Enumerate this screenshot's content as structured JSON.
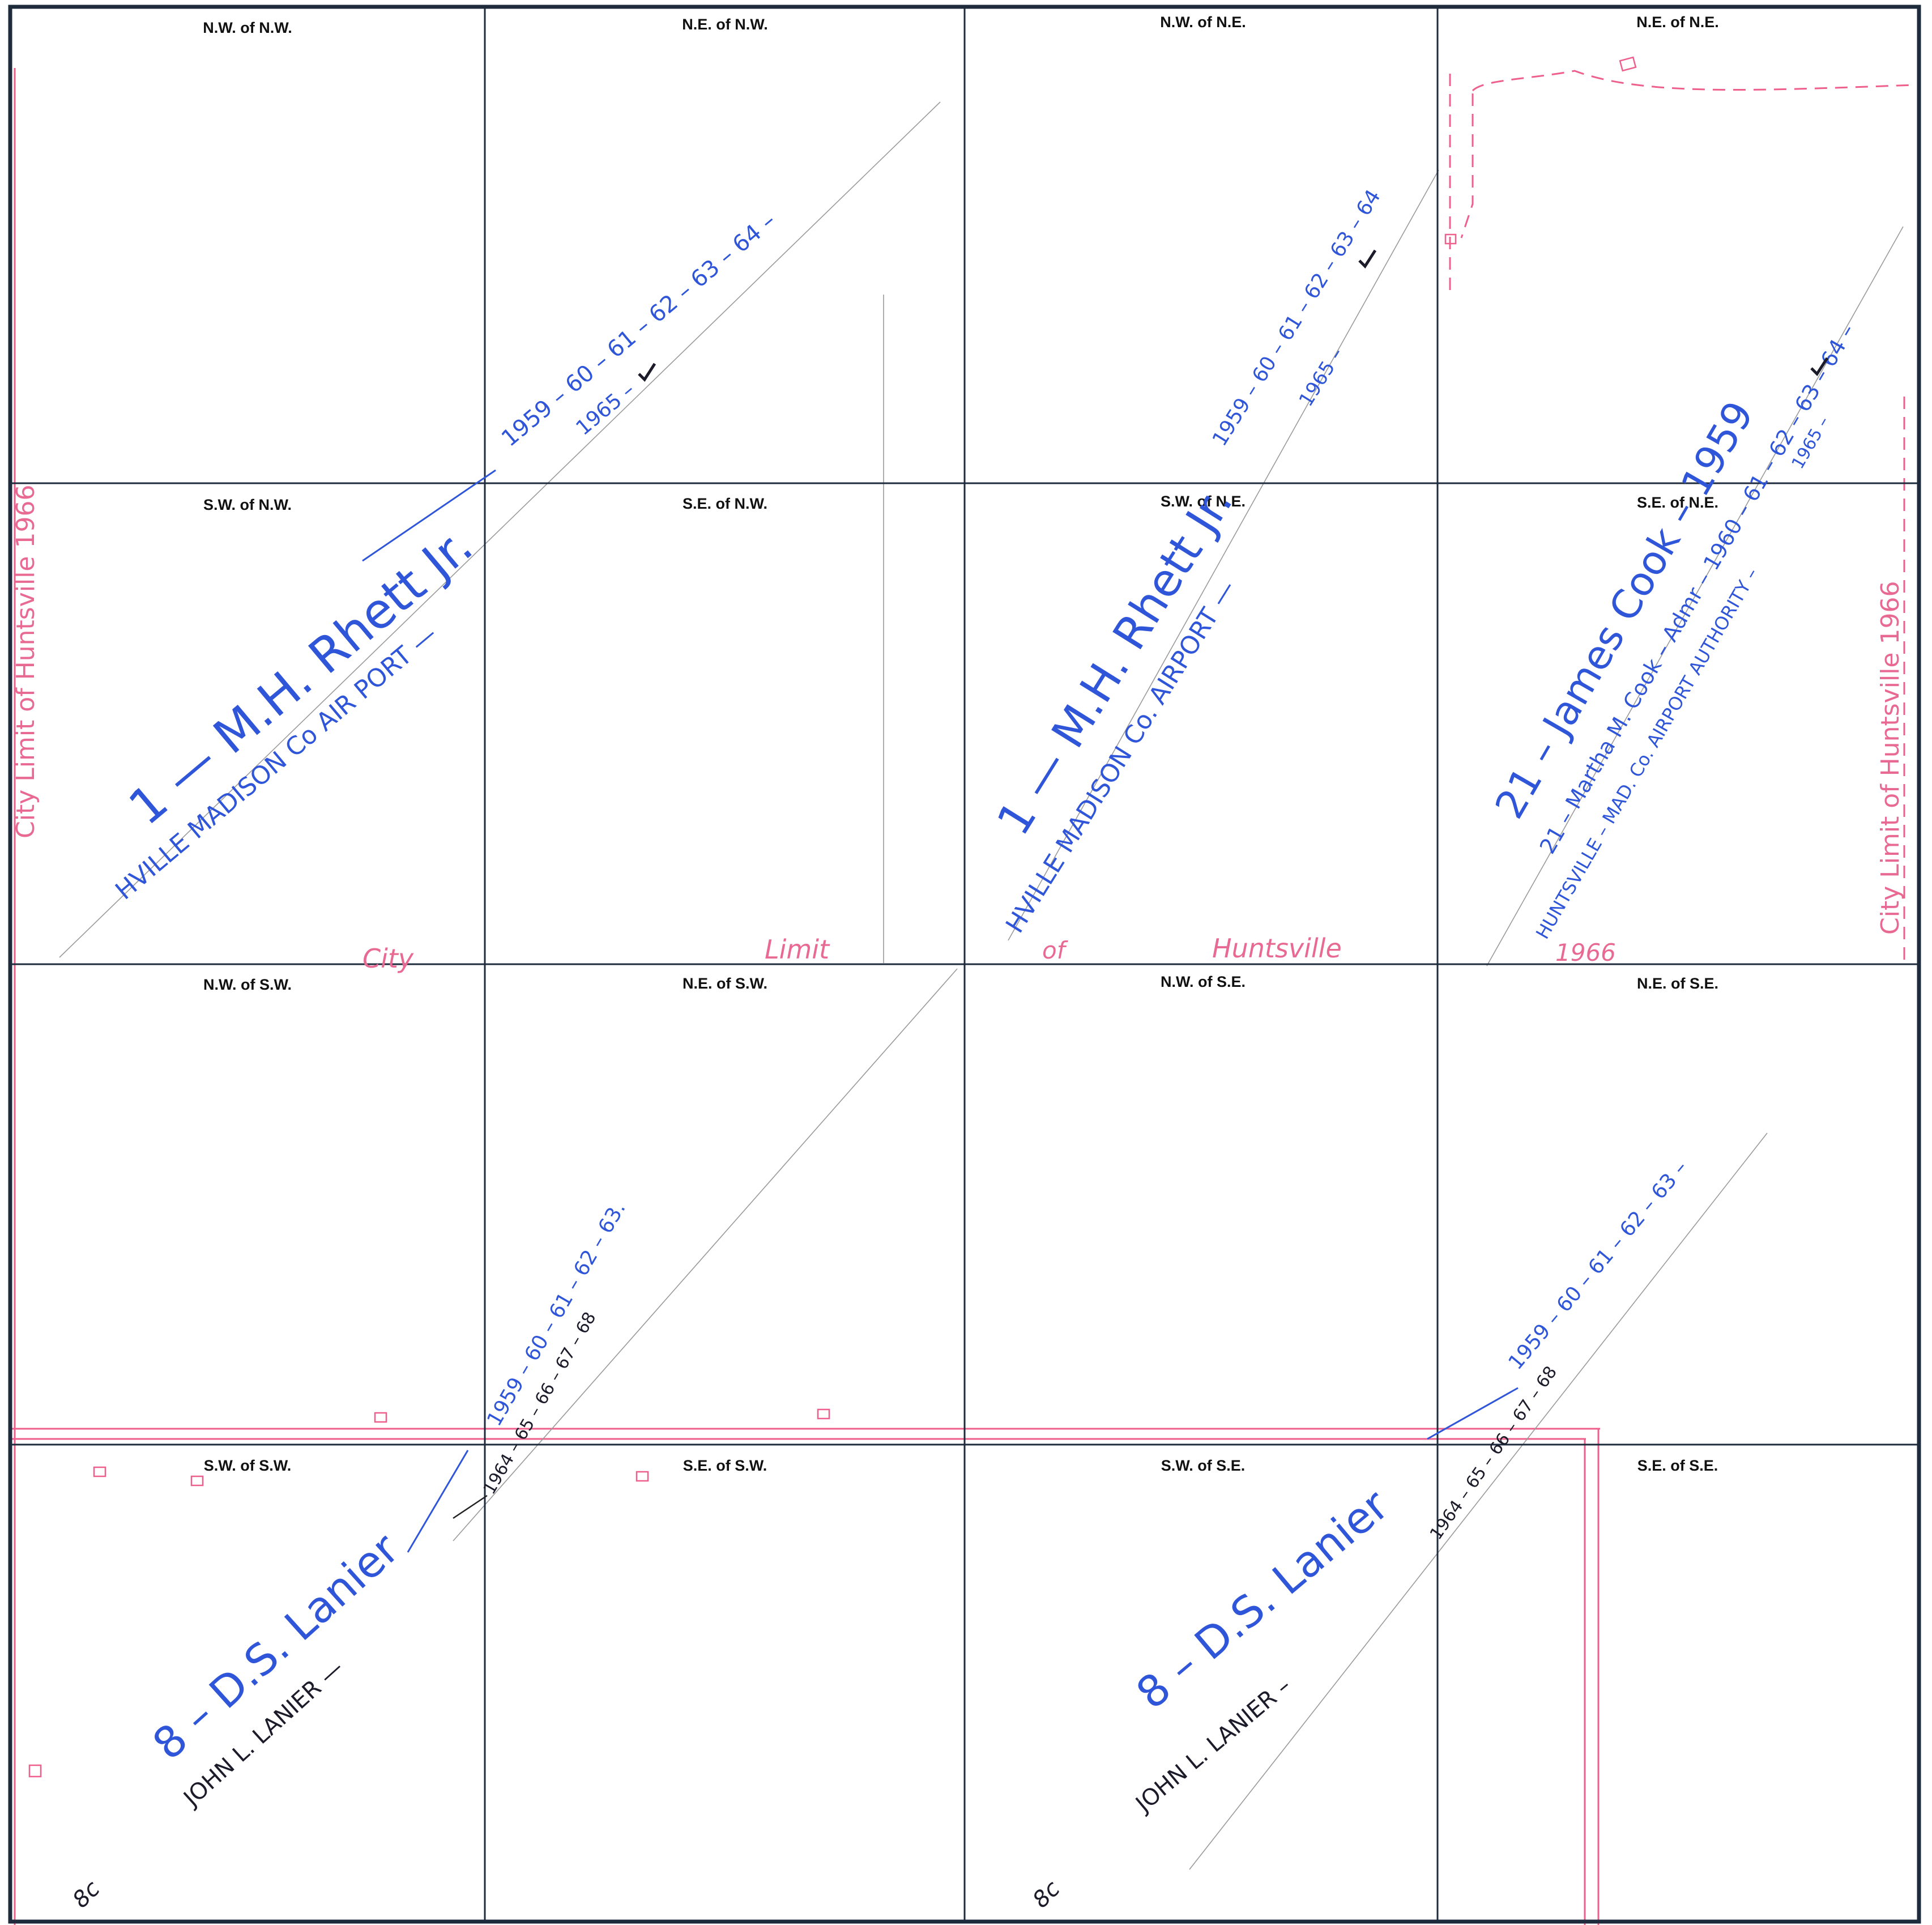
{
  "grid": {
    "headers": [
      [
        "N.W. of N.W.",
        "N.E. of N.W.",
        "N.W. of N.E.",
        "N.E. of N.E."
      ],
      [
        "S.W. of N.W.",
        "S.E. of N.W.",
        "S.W. of N.E.",
        "S.E. of N.E."
      ],
      [
        "N.W. of S.W.",
        "N.E. of S.W.",
        "N.W. of S.E.",
        "N.E. of S.E."
      ],
      [
        "S.W. of S.W.",
        "S.E. of S.W.",
        "S.W. of S.E.",
        "S.E. of S.E."
      ]
    ]
  },
  "parcels": {
    "rhett_west": {
      "owner": "1 — M.H. Rhett Jr.",
      "years": "1959 – 60 – 61 – 62 – 63 – 64 –",
      "successor": "HVILLE MADISON Co AIR PORT —",
      "successor_year": "1965 –"
    },
    "rhett_east": {
      "owner": "1 — M.H. Rhett Jr.",
      "years": "1959 – 60 – 61 – 62 – 63 – 64",
      "successor": "HVILLE MADISON Co. AIRPORT —",
      "successor_year": "1965 –"
    },
    "cook": {
      "owner": "21 – James Cook – 1959",
      "admr": "21 – Martha M. Cook – Admr – 1960 – 61 – 62 – 63 – 64 –",
      "successor": "HUNTSVILLE – MAD. Co. AIRPORT AUTHORITY –",
      "successor_year": "1965 –"
    },
    "lanier_west": {
      "owner": "8 – D.S. Lanier",
      "years": "1959 – 60 – 61 – 62 – 63.",
      "successor": "JOHN L. LANIER —",
      "successor_years": "1964 – 65 – 66 – 67 – 68",
      "code": "8c"
    },
    "lanier_east": {
      "owner": "8 – D.S. Lanier",
      "years": "1959 – 60 – 61 – 62 – 63 –",
      "successor": "JOHN L. LANIER –",
      "successor_years": "1964 – 65 – 66 – 67 – 68",
      "code": "8c"
    }
  },
  "city_limit": {
    "middle_words": [
      "City",
      "Limit",
      "of",
      "Huntsville"
    ],
    "middle_year": "1966",
    "left": "City Limit of Huntsville 1966",
    "right": "City Limit of Huntsville 1966"
  },
  "colors": {
    "grid": "#1e2b3c",
    "blue_ink": "#2f55d9",
    "black_ink": "#1b1b2a",
    "red_pencil": "#ee5f8c",
    "paper": "#ffffff"
  }
}
